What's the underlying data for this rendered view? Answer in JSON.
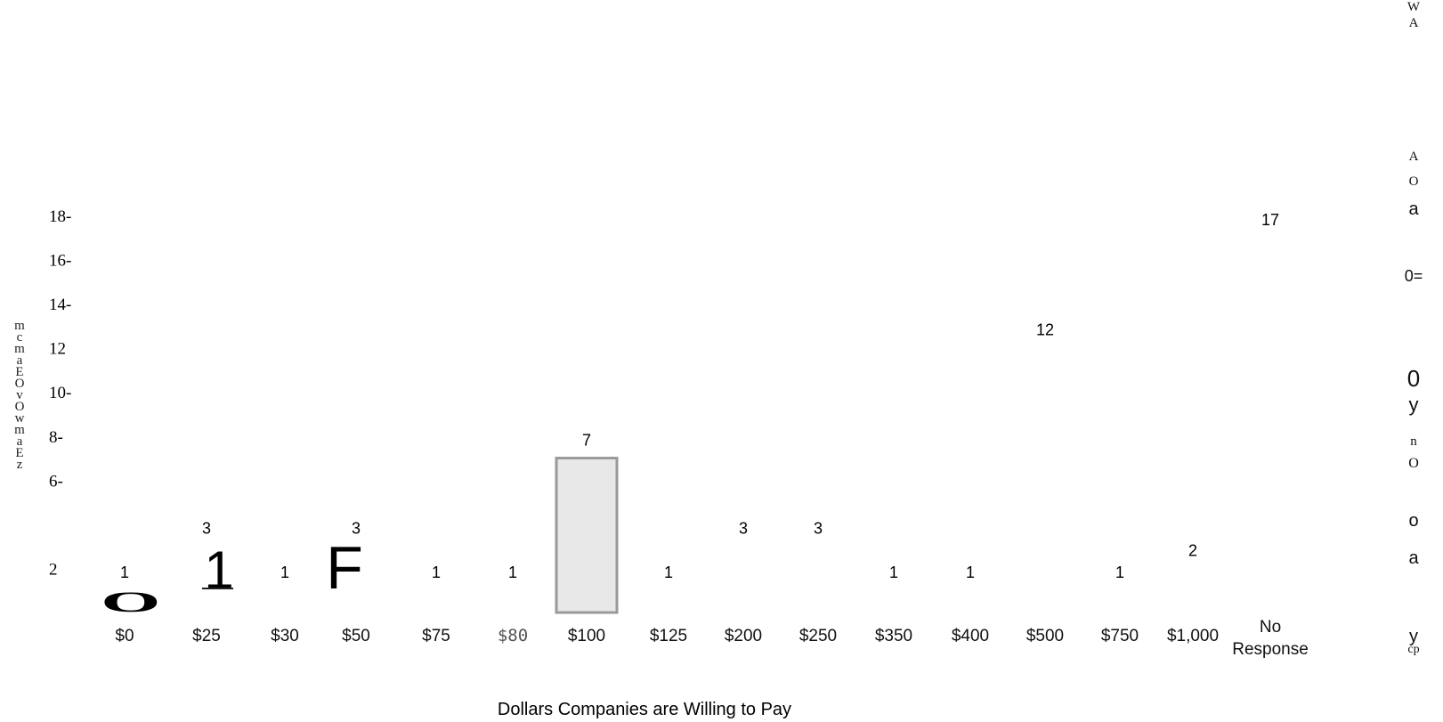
{
  "chart_data": {
    "type": "bar",
    "title": "",
    "xlabel": "Dollars Companies are Willing to Pay",
    "ylabel": "",
    "categories": [
      "$0",
      "$25",
      "$30",
      "$50",
      "$75",
      "$80",
      "$100",
      "$125",
      "$200",
      "$250",
      "$350",
      "$400",
      "$500",
      "$750",
      "$1,000",
      "No Response"
    ],
    "values": [
      1,
      3,
      1,
      3,
      1,
      1,
      7,
      1,
      3,
      3,
      1,
      1,
      12,
      1,
      2,
      17
    ],
    "data_labels": [
      "1",
      "3",
      "1",
      "3",
      "1",
      "1",
      "7",
      "1",
      "3",
      "3",
      "1",
      "1",
      "12",
      "1",
      "2",
      "17"
    ],
    "ylim": [
      0,
      18
    ],
    "y_ticks": [
      "2",
      "6-",
      "8-",
      "10-",
      "12",
      "14-",
      "16-",
      "18-"
    ],
    "y_tick_values": [
      2,
      6,
      8,
      10,
      12,
      14,
      16,
      18
    ],
    "grid": false,
    "legend": "none",
    "visible_bar_category": "$100",
    "bar_fill": "#e8e8e8",
    "bar_edge": "#9a9a9a"
  },
  "artifacts": {
    "left_axis_glyphs": [
      "m",
      "c",
      "m",
      "a",
      "E",
      "O",
      "v",
      "O",
      "w",
      "m",
      "a",
      "E",
      "z"
    ],
    "right_margin_glyphs": [
      "W",
      "A",
      "A",
      "O",
      "a",
      "0=",
      "0",
      "y",
      "n",
      "O",
      "o",
      "a",
      "y",
      "cp"
    ],
    "plot_glyphs": {
      "ring_under_0": "O",
      "mark_at_25": "1",
      "mark_at_50": "F"
    }
  }
}
